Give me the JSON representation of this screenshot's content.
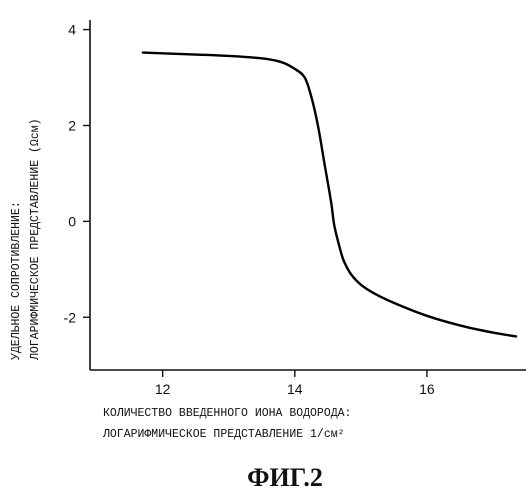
{
  "chart_data": {
    "type": "line",
    "xlim": [
      10.9,
      17.5
    ],
    "ylim": [
      -3.1,
      4.2
    ],
    "x_ticks": [
      "12",
      "14",
      "16"
    ],
    "x_tick_values": [
      12,
      14,
      16
    ],
    "y_ticks": [
      "4",
      "2",
      "0",
      "-2"
    ],
    "y_tick_values": [
      4,
      2,
      0,
      -2
    ],
    "grid": false,
    "xlabel": [
      "КОЛИЧЕСТВО ВВЕДЕННОГО ИОНА ВОДОРОДА:",
      "ЛОГАРИФМИЧЕСКОЕ ПРЕДСТАВЛЕНИЕ 1/см²"
    ],
    "ylabel": [
      "УДЕЛЬНОЕ СОПРОТИВЛЕНИЕ:",
      "ЛОГАРИФМИЧЕСКОЕ ПРЕДСТАВЛЕНИЕ (Ωсм)"
    ],
    "series": [
      {
        "color": "#000000",
        "x": [
          11.7,
          12.5,
          13.0,
          13.5,
          13.8,
          14.0,
          14.15,
          14.25,
          14.35,
          14.45,
          14.55,
          14.6,
          14.7,
          14.75,
          14.85,
          15.0,
          15.2,
          15.5,
          16.0,
          16.5,
          17.0,
          17.35
        ],
        "y": [
          3.52,
          3.48,
          3.45,
          3.4,
          3.32,
          3.18,
          3.0,
          2.6,
          2.0,
          1.2,
          0.4,
          -0.1,
          -0.65,
          -0.85,
          -1.1,
          -1.32,
          -1.5,
          -1.7,
          -1.97,
          -2.17,
          -2.32,
          -2.4
        ]
      }
    ]
  },
  "caption": "ФИГ.2"
}
